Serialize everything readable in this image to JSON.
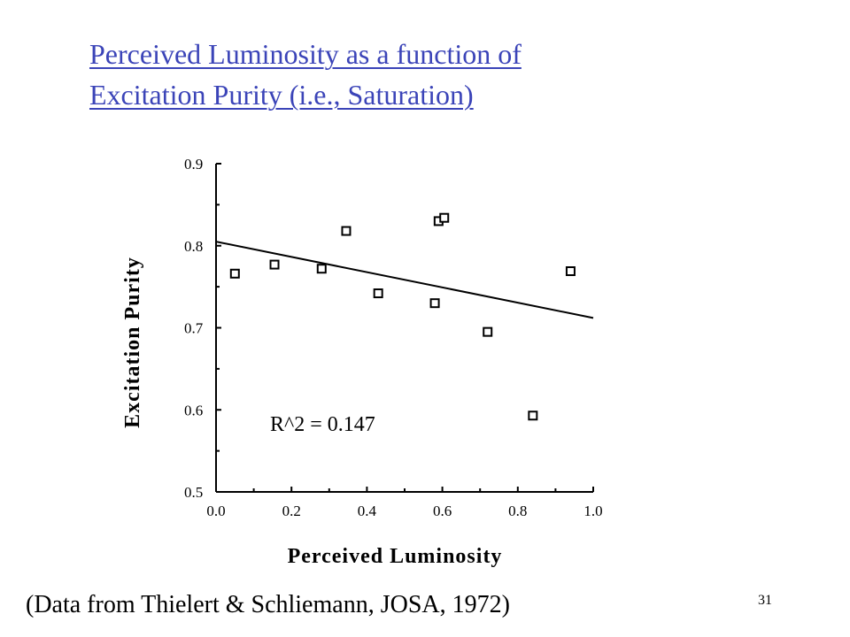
{
  "slide": {
    "title_line1": "Perceived Luminosity as a function of",
    "title_line2": "Excitation Purity (i.e., Saturation)",
    "source": "(Data from Thielert & Schliemann, JOSA, 1972)",
    "page_number": "31",
    "link_color": "#3b44b8"
  },
  "chart_data": {
    "type": "scatter",
    "title": "",
    "xlabel": "Perceived Luminosity",
    "ylabel": "Excitation Purity",
    "xlim": [
      0.0,
      1.0
    ],
    "ylim": [
      0.5,
      0.9
    ],
    "x_ticks": [
      "0.0",
      "0.2",
      "0.4",
      "0.6",
      "0.8",
      "1.0"
    ],
    "y_ticks": [
      "0.5",
      "0.6",
      "0.7",
      "0.8",
      "0.9"
    ],
    "grid": false,
    "marker": "open-square",
    "series": [
      {
        "points": [
          {
            "x": 0.05,
            "y": 0.766
          },
          {
            "x": 0.155,
            "y": 0.777
          },
          {
            "x": 0.28,
            "y": 0.772
          },
          {
            "x": 0.345,
            "y": 0.818
          },
          {
            "x": 0.43,
            "y": 0.742
          },
          {
            "x": 0.58,
            "y": 0.73
          },
          {
            "x": 0.59,
            "y": 0.83
          },
          {
            "x": 0.605,
            "y": 0.834
          },
          {
            "x": 0.72,
            "y": 0.695
          },
          {
            "x": 0.84,
            "y": 0.593
          },
          {
            "x": 0.94,
            "y": 0.769
          }
        ]
      }
    ],
    "fit_line": {
      "x": [
        0.0,
        1.0
      ],
      "y": [
        0.805,
        0.712
      ]
    },
    "annotation": "R^2 = 0.147"
  }
}
